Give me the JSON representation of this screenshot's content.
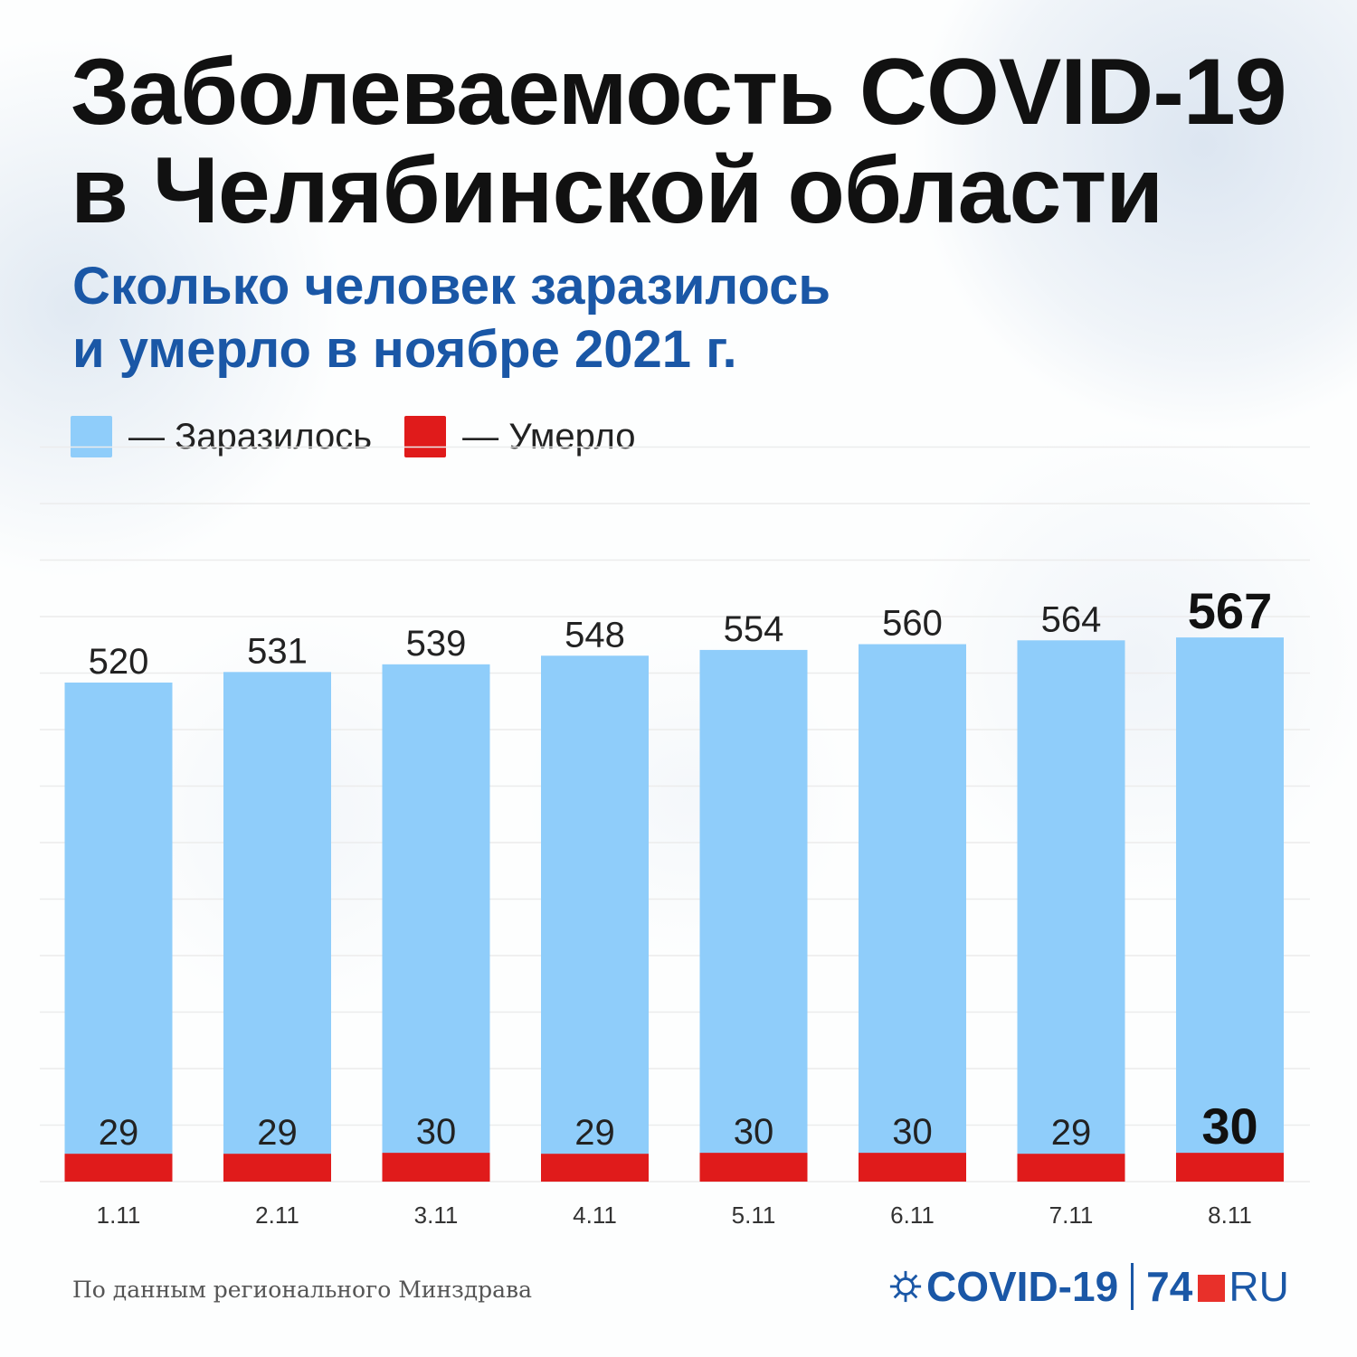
{
  "title": {
    "line1": "Заболеваемость COVID-19",
    "line2": "в Челябинской области"
  },
  "subtitle": {
    "line1": "Сколько человек заразилось",
    "line2": "и умерло в ноябре 2021 г."
  },
  "legend": {
    "infected": "— Заразилось",
    "died": "— Умерло"
  },
  "colors": {
    "infected": "#8fcdfa",
    "died": "#e01b1b",
    "subtitle": "#1a57a6",
    "gridline": "#ececec"
  },
  "chart_data": {
    "type": "bar",
    "categories": [
      "1.11",
      "2.11",
      "3.11",
      "4.11",
      "5.11",
      "6.11",
      "7.11",
      "8.11"
    ],
    "series": [
      {
        "name": "Заразилось",
        "values": [
          520,
          531,
          539,
          548,
          554,
          560,
          564,
          567
        ]
      },
      {
        "name": "Умерло",
        "values": [
          29,
          29,
          30,
          29,
          30,
          30,
          29,
          30
        ]
      }
    ],
    "ylim": [
      0,
      650
    ],
    "grid": true,
    "legend_position": "top-left",
    "highlight_last": true
  },
  "footnote": "По данным регионального Минздрава",
  "logo": {
    "part1": "COVID-19",
    "part2": "74",
    "part3": "RU"
  }
}
